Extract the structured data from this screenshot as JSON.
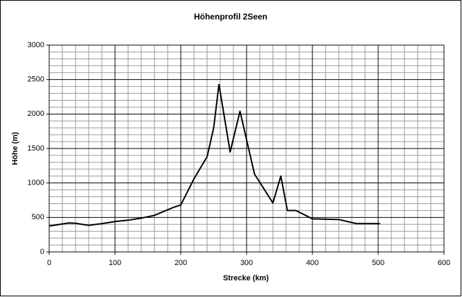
{
  "chart_data": {
    "type": "line",
    "title": "Höhenprofil 2Seen",
    "x_label": "Strecke (km)",
    "y_label": "Höhe (m)",
    "x": [
      0,
      30,
      40,
      60,
      80,
      100,
      120,
      140,
      160,
      190,
      200,
      220,
      240,
      250,
      258,
      275,
      290,
      312,
      340,
      352,
      362,
      375,
      400,
      440,
      467,
      503
    ],
    "values": [
      375,
      420,
      415,
      385,
      410,
      440,
      460,
      490,
      530,
      650,
      680,
      1060,
      1380,
      1800,
      2430,
      1450,
      2040,
      1130,
      710,
      1100,
      600,
      600,
      480,
      470,
      410,
      410
    ],
    "color": "#000000",
    "xlim": [
      0,
      600
    ],
    "xticks": [
      0,
      100,
      200,
      300,
      400,
      500,
      600
    ],
    "ylim": [
      0,
      3000
    ],
    "yticks": [
      0,
      500,
      1000,
      1500,
      2000,
      2500,
      3000
    ],
    "grid": true,
    "minor_grid": true
  }
}
